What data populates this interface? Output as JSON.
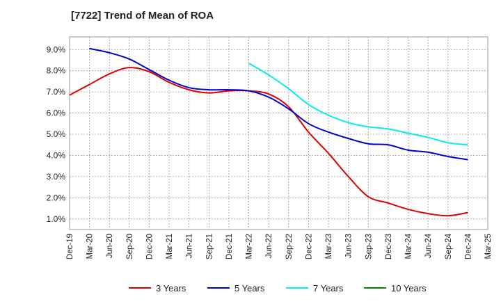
{
  "chart_data": {
    "type": "line",
    "title": "[7722]  Trend of Mean of ROA",
    "xlabel": "",
    "ylabel": "",
    "ylim": [
      0.5,
      9.6
    ],
    "yticks": [
      1.0,
      2.0,
      3.0,
      4.0,
      5.0,
      6.0,
      7.0,
      8.0,
      9.0
    ],
    "ytick_labels": [
      "1.0%",
      "2.0%",
      "3.0%",
      "4.0%",
      "5.0%",
      "6.0%",
      "7.0%",
      "8.0%",
      "9.0%"
    ],
    "categories": [
      "Dec-19",
      "Mar-20",
      "Jun-20",
      "Sep-20",
      "Dec-20",
      "Mar-21",
      "Jun-21",
      "Sep-21",
      "Dec-21",
      "Mar-22",
      "Jun-22",
      "Sep-22",
      "Dec-22",
      "Mar-23",
      "Jun-23",
      "Sep-23",
      "Dec-23",
      "Mar-24",
      "Jun-24",
      "Sep-24",
      "Dec-24",
      "Mar-25"
    ],
    "grid": true,
    "legend_position": "bottom",
    "series": [
      {
        "name": "3 Years",
        "color": "#dd0000",
        "values": [
          6.85,
          7.35,
          7.85,
          8.15,
          7.95,
          7.45,
          7.1,
          6.95,
          7.05,
          7.05,
          6.9,
          6.3,
          5.1,
          4.1,
          3.0,
          2.05,
          1.75,
          1.45,
          1.25,
          1.15,
          1.3,
          null
        ]
      },
      {
        "name": "5 Years",
        "color": "#0000cc",
        "values": [
          null,
          9.05,
          8.85,
          8.55,
          8.05,
          7.55,
          7.2,
          7.1,
          7.1,
          7.05,
          6.75,
          6.2,
          5.5,
          5.1,
          4.8,
          4.55,
          4.5,
          4.25,
          4.15,
          3.95,
          3.8,
          null
        ]
      },
      {
        "name": "7 Years",
        "color": "#00eeee",
        "values": [
          null,
          null,
          null,
          null,
          null,
          null,
          null,
          null,
          null,
          8.35,
          7.8,
          7.15,
          6.4,
          5.9,
          5.55,
          5.35,
          5.25,
          5.05,
          4.85,
          4.6,
          4.5,
          null
        ]
      },
      {
        "name": "10 Years",
        "color": "#008800",
        "values": [
          null,
          null,
          null,
          null,
          null,
          null,
          null,
          null,
          null,
          null,
          null,
          null,
          null,
          null,
          null,
          null,
          null,
          null,
          null,
          null,
          null,
          null
        ]
      }
    ]
  }
}
